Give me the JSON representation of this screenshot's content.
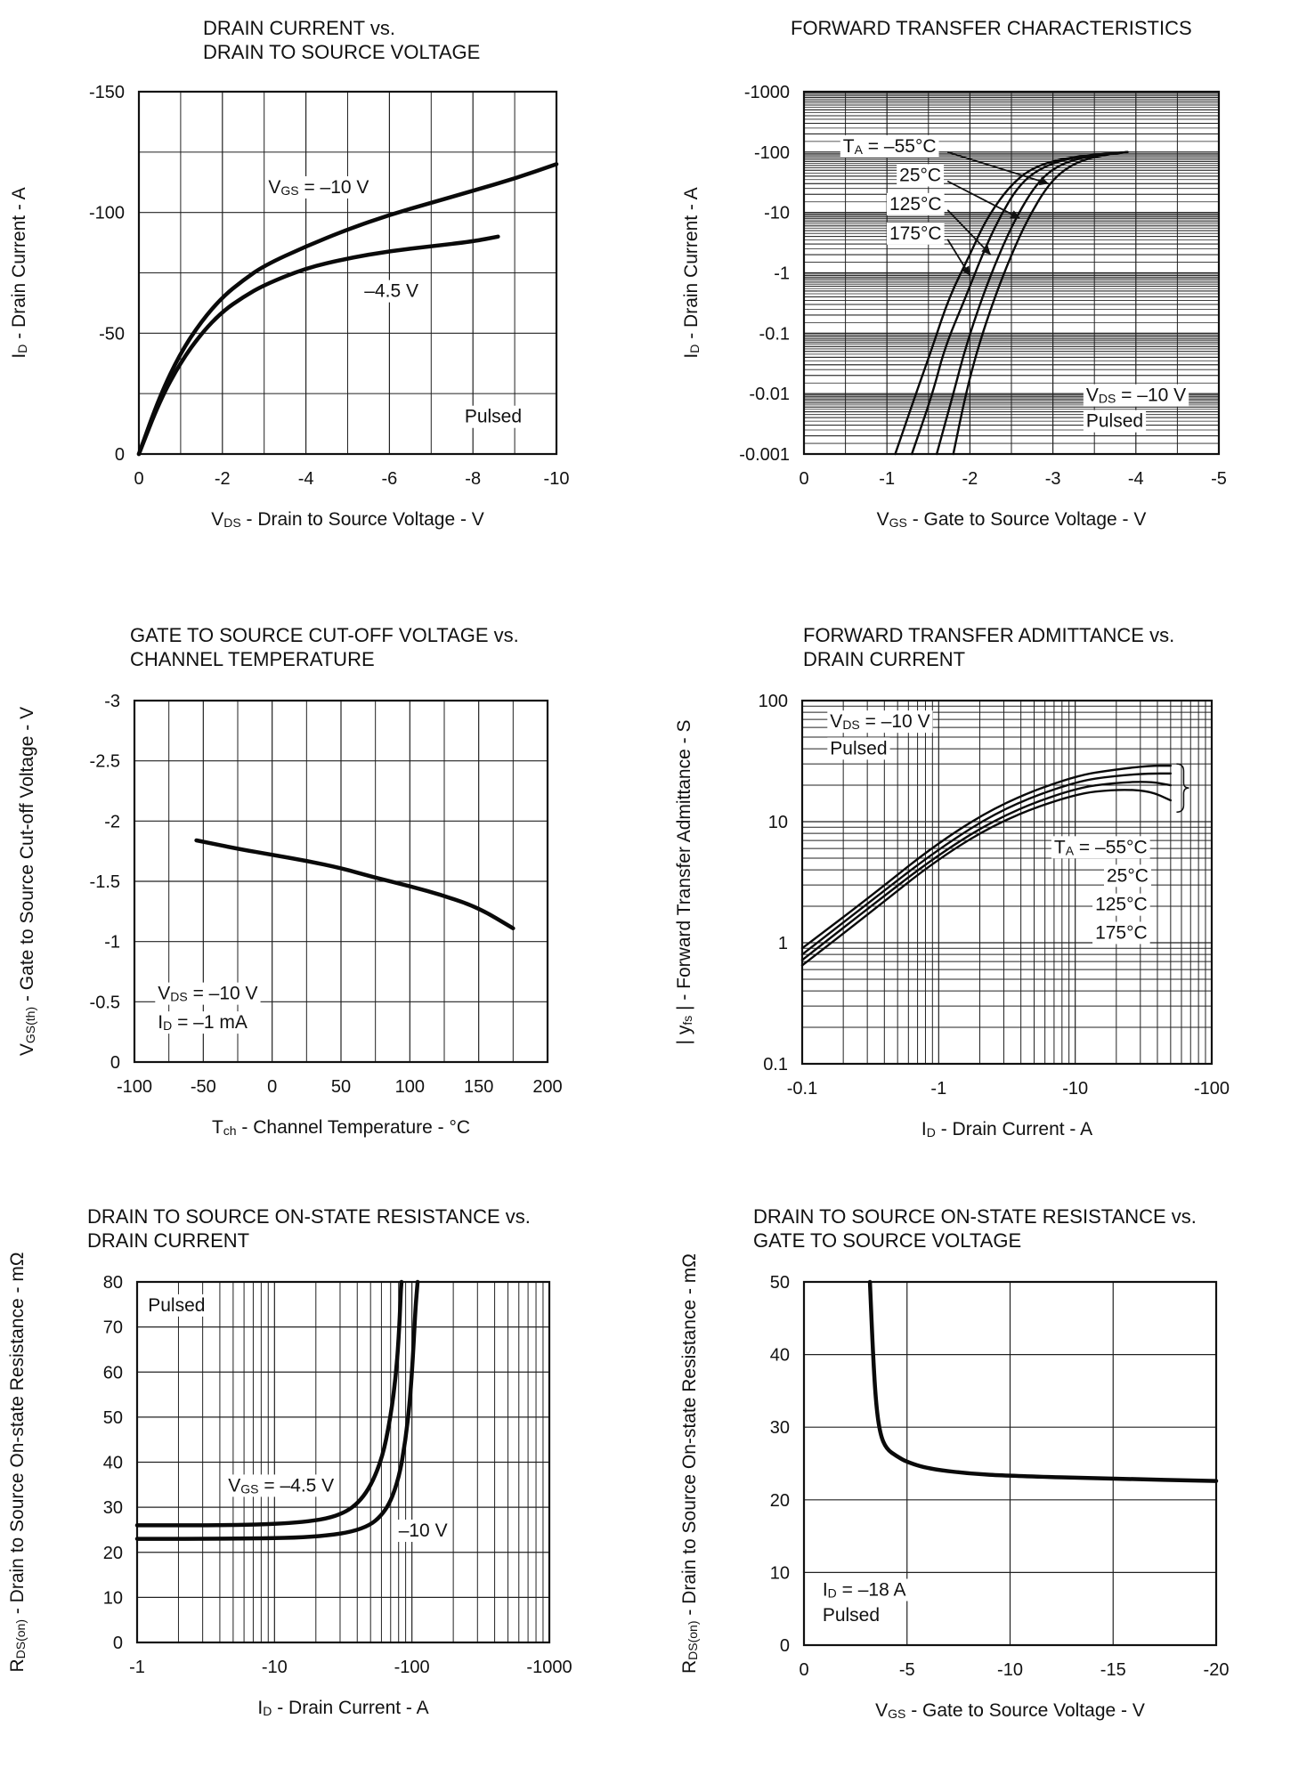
{
  "chart_data": [
    {
      "type": "line",
      "title": "DRAIN CURRENT vs.\nDRAIN TO SOURCE VOLTAGE",
      "xlabel": {
        "main": "V",
        "sub": "DS",
        "rest": " - Drain to Source Voltage - V"
      },
      "ylabel": {
        "main": "I",
        "sub": "D",
        "rest": " - Drain Current - A"
      },
      "xscale": "linear",
      "yscale": "linear",
      "xlim": [
        0,
        -10
      ],
      "ylim": [
        0,
        -150
      ],
      "xticks": [
        0,
        -2,
        -4,
        -6,
        -8,
        -10
      ],
      "xtick_labels": [
        "0",
        "-2",
        "-4",
        "-6",
        "-8",
        "-10"
      ],
      "yticks": [
        0,
        -50,
        -100,
        -150
      ],
      "ytick_labels": [
        "0",
        "-50",
        "-100",
        "-150"
      ],
      "minor_x": [
        -1,
        -3,
        -5,
        -7,
        -9
      ],
      "minor_y": [
        -25,
        -75,
        -125
      ],
      "series": [
        {
          "name": "VGS = -10 V",
          "x": [
            0,
            -0.5,
            -1,
            -1.5,
            -2,
            -2.5,
            -3,
            -4,
            -5,
            -6,
            -7,
            -8,
            -9,
            -10
          ],
          "y": [
            0,
            -24,
            -42,
            -55,
            -65,
            -72,
            -78,
            -86,
            -93,
            -99,
            -104,
            -109,
            -114,
            -120
          ]
        },
        {
          "name": "-4.5 V",
          "x": [
            0,
            -0.5,
            -1,
            -1.5,
            -2,
            -2.5,
            -3,
            -4,
            -5,
            -6,
            -7,
            -8,
            -8.6
          ],
          "y": [
            0,
            -22,
            -38,
            -50,
            -59,
            -65,
            -70,
            -77,
            -81,
            -84,
            -86,
            -88,
            -90
          ]
        }
      ],
      "annotations": [
        {
          "main": "V",
          "sub": "GS",
          "rest": " = –10 V",
          "x": -3.1,
          "y": -108
        },
        {
          "main": "–4.5 V",
          "sub": "",
          "rest": "",
          "x": -5.4,
          "y": -65
        },
        {
          "main": "Pulsed",
          "sub": "",
          "rest": "",
          "x": -7.8,
          "y": -13
        }
      ]
    },
    {
      "type": "line",
      "title": "FORWARD TRANSFER CHARACTERISTICS",
      "xlabel": {
        "main": "V",
        "sub": "GS",
        "rest": " - Gate to Source Voltage - V"
      },
      "ylabel": {
        "main": "I",
        "sub": "D",
        "rest": " - Drain Current - A"
      },
      "xscale": "linear",
      "yscale": "log",
      "xlim": [
        0,
        -5
      ],
      "ylim": [
        -0.001,
        -1000
      ],
      "xticks": [
        0,
        -1,
        -2,
        -3,
        -4,
        -5
      ],
      "xtick_labels": [
        "0",
        "-1",
        "-2",
        "-3",
        "-4",
        "-5"
      ],
      "yticks": [
        -0.001,
        -0.01,
        -0.1,
        -1,
        -10,
        -100,
        -1000
      ],
      "ytick_labels": [
        "-0.001",
        "-0.01",
        "-0.1",
        "-1",
        "-10",
        "-100",
        "-1000"
      ],
      "minor_x": [
        -0.5,
        -1.5,
        -2.5,
        -3.5,
        -4.5
      ],
      "series": [
        {
          "name": "TA = -55°C",
          "x": [
            -1.8,
            -1.95,
            -2.1,
            -2.3,
            -2.5,
            -2.7,
            -2.95,
            -3.2,
            -3.5,
            -3.9
          ],
          "y": [
            -0.001,
            -0.01,
            -0.06,
            -0.4,
            -2,
            -8,
            -30,
            -60,
            -85,
            -100
          ]
        },
        {
          "name": "25°C",
          "x": [
            -1.6,
            -1.8,
            -1.95,
            -2.15,
            -2.35,
            -2.55,
            -2.8,
            -3.05,
            -3.4,
            -3.9
          ],
          "y": [
            -0.001,
            -0.01,
            -0.06,
            -0.4,
            -2,
            -8,
            -30,
            -60,
            -85,
            -100
          ]
        },
        {
          "name": "125°C",
          "x": [
            -1.3,
            -1.55,
            -1.7,
            -1.95,
            -2.15,
            -2.35,
            -2.6,
            -2.9,
            -3.3,
            -3.9
          ],
          "y": [
            -0.001,
            -0.01,
            -0.06,
            -0.4,
            -2,
            -8,
            -30,
            -60,
            -85,
            -100
          ]
        },
        {
          "name": "175°C",
          "x": [
            -1.1,
            -1.35,
            -1.55,
            -1.75,
            -2.0,
            -2.2,
            -2.5,
            -2.8,
            -3.25,
            -3.9
          ],
          "y": [
            -0.001,
            -0.01,
            -0.06,
            -0.4,
            -2,
            -8,
            -30,
            -60,
            -85,
            -100
          ]
        }
      ],
      "annotations": [
        {
          "main": "T",
          "sub": "A",
          "rest": " = –55°C",
          "x": -0.47,
          "y": -100
        },
        {
          "main": "25°C",
          "sub": "",
          "rest": "",
          "x": -1.15,
          "y": -33
        },
        {
          "main": "125°C",
          "sub": "",
          "rest": "",
          "x": -1.03,
          "y": -11
        },
        {
          "main": "175°C",
          "sub": "",
          "rest": "",
          "x": -1.03,
          "y": -3.6
        },
        {
          "main": "V",
          "sub": "DS",
          "rest": " = –10 V",
          "x": -3.4,
          "y": -0.0075
        },
        {
          "main": "Pulsed",
          "sub": "",
          "rest": "",
          "x": -3.4,
          "y": -0.0028
        }
      ]
    },
    {
      "type": "line",
      "title": "GATE TO SOURCE CUT-OFF VOLTAGE vs.\nCHANNEL TEMPERATURE",
      "xlabel": {
        "main": "T",
        "sub": "ch",
        "rest": " - Channel Temperature - °C"
      },
      "ylabel": {
        "main": "V",
        "sub": "GS(th)",
        "rest": " - Gate to Source Cut-off Voltage - V"
      },
      "xscale": "linear",
      "yscale": "linear",
      "xlim": [
        -100,
        200
      ],
      "ylim": [
        0,
        -3
      ],
      "xticks": [
        -100,
        -50,
        0,
        50,
        100,
        150,
        200
      ],
      "xtick_labels": [
        "-100",
        "-50",
        "0",
        "50",
        "100",
        "150",
        "200"
      ],
      "yticks": [
        0,
        -0.5,
        -1,
        -1.5,
        -2,
        -2.5,
        -3
      ],
      "ytick_labels": [
        "0",
        "-0.5",
        "-1",
        "-1.5",
        "-2",
        "-2.5",
        "-3"
      ],
      "minor_x": [
        -75,
        -25,
        25,
        75,
        125,
        175
      ],
      "series": [
        {
          "name": "VGS(th)",
          "x": [
            -55,
            -25,
            0,
            25,
            50,
            75,
            100,
            125,
            150,
            175
          ],
          "y": [
            -1.84,
            -1.77,
            -1.72,
            -1.67,
            -1.61,
            -1.53,
            -1.46,
            -1.38,
            -1.28,
            -1.11
          ]
        }
      ],
      "annotations": [
        {
          "main": "V",
          "sub": "DS",
          "rest": " = –10 V",
          "x": -83,
          "y": -0.52
        },
        {
          "main": "I",
          "sub": "D",
          "rest": " = –1 mA",
          "x": -83,
          "y": -0.28
        }
      ]
    },
    {
      "type": "line",
      "title": "FORWARD TRANSFER ADMITTANCE vs.\nDRAIN CURRENT",
      "xlabel": {
        "main": "I",
        "sub": "D",
        "rest": " - Drain Current - A"
      },
      "ylabel": {
        "main": "| y",
        "sub": "fs",
        "rest": " | - Forward Transfer Admittance - S"
      },
      "xscale": "log",
      "yscale": "log",
      "xlim": [
        -0.1,
        -100
      ],
      "ylim": [
        0.1,
        100
      ],
      "xticks": [
        -0.1,
        -1,
        -10,
        -100
      ],
      "xtick_labels": [
        "-0.1",
        "-1",
        "-10",
        "-100"
      ],
      "yticks": [
        0.1,
        1,
        10,
        100
      ],
      "ytick_labels": [
        "0.1",
        "1",
        "10",
        "100"
      ],
      "series": [
        {
          "name": "TA = -55°C",
          "x": [
            -0.1,
            -0.3,
            -1,
            -3,
            -10,
            -20,
            -35,
            -50
          ],
          "y": [
            0.65,
            1.7,
            5,
            10.5,
            17,
            18.5,
            18,
            15
          ]
        },
        {
          "name": "25°C",
          "x": [
            -0.1,
            -0.3,
            -1,
            -3,
            -10,
            -20,
            -35,
            -50
          ],
          "y": [
            0.72,
            1.9,
            5.4,
            11.5,
            19,
            21,
            21.5,
            20
          ]
        },
        {
          "name": "125°C",
          "x": [
            -0.1,
            -0.3,
            -1,
            -3,
            -10,
            -20,
            -35,
            -50
          ],
          "y": [
            0.8,
            2.1,
            6,
            13,
            21.5,
            24,
            25,
            25
          ]
        },
        {
          "name": "175°C",
          "x": [
            -0.1,
            -0.3,
            -1,
            -3,
            -10,
            -20,
            -35,
            -50
          ],
          "y": [
            0.9,
            2.3,
            6.8,
            14.5,
            24,
            27,
            29,
            29
          ]
        }
      ],
      "annotations": [
        {
          "main": "V",
          "sub": "DS",
          "rest": " = –10 V",
          "x": -0.16,
          "y": 60
        },
        {
          "main": "Pulsed",
          "sub": "",
          "rest": "",
          "x": -0.16,
          "y": 36
        },
        {
          "main": "T",
          "sub": "A",
          "rest": " = –55°C",
          "x": -7,
          "y": 5.5
        },
        {
          "main": "25°C",
          "sub": "",
          "rest": "",
          "x": -17,
          "y": 3.2
        },
        {
          "main": "125°C",
          "sub": "",
          "rest": "",
          "x": -14,
          "y": 1.85
        },
        {
          "main": "175°C",
          "sub": "",
          "rest": "",
          "x": -14,
          "y": 1.08
        }
      ]
    },
    {
      "type": "line",
      "title": "DRAIN  TO  SOURCE  ON-STATE  RESISTANCE  vs.\nDRAIN CURRENT",
      "xlabel": {
        "main": "I",
        "sub": "D",
        "rest": " - Drain Current - A"
      },
      "ylabel": {
        "main": "R",
        "sub": "DS(on)",
        "rest": " - Drain to Source On-state Resistance - mΩ"
      },
      "xscale": "log",
      "yscale": "linear",
      "xlim": [
        -1,
        -1000
      ],
      "ylim": [
        0,
        80
      ],
      "xticks": [
        -1,
        -10,
        -100,
        -1000
      ],
      "xtick_labels": [
        "-1",
        "-10",
        "-100",
        "-1000"
      ],
      "yticks": [
        0,
        10,
        20,
        30,
        40,
        50,
        60,
        70,
        80
      ],
      "ytick_labels": [
        "0",
        "10",
        "20",
        "30",
        "40",
        "50",
        "60",
        "70",
        "80"
      ],
      "series": [
        {
          "name": "VGS = -4.5 V",
          "x": [
            -1,
            -5,
            -15,
            -30,
            -45,
            -60,
            -70,
            -77,
            -81,
            -83,
            -84
          ],
          "y": [
            26,
            26,
            26.5,
            28,
            32,
            40,
            50,
            60,
            70,
            78,
            80
          ]
        },
        {
          "name": "-10 V",
          "x": [
            -1,
            -5,
            -20,
            -45,
            -65,
            -80,
            -90,
            -97,
            -102,
            -106,
            -110
          ],
          "y": [
            23,
            23,
            23.3,
            25,
            29,
            36,
            45,
            54,
            64,
            74,
            80
          ]
        }
      ],
      "annotations": [
        {
          "main": "Pulsed",
          "sub": "",
          "rest": "",
          "x": -1.2,
          "y": 73.5
        },
        {
          "main": "V",
          "sub": "GS",
          "rest": " = –4.5 V",
          "x": -4.6,
          "y": 33.5
        },
        {
          "main": "–10 V",
          "sub": "",
          "rest": "",
          "x": -80,
          "y": 23.5
        }
      ]
    },
    {
      "type": "line",
      "title": "DRAIN TO SOURCE ON-STATE RESISTANCE vs.\nGATE TO SOURCE VOLTAGE",
      "xlabel": {
        "main": "V",
        "sub": "GS",
        "rest": " - Gate to Source Voltage - V"
      },
      "ylabel": {
        "main": "R",
        "sub": "DS(on)",
        "rest": " - Drain to Source On-state Resistance - mΩ"
      },
      "xscale": "linear",
      "yscale": "linear",
      "xlim": [
        0,
        -20
      ],
      "ylim": [
        0,
        50
      ],
      "xticks": [
        0,
        -5,
        -10,
        -15,
        -20
      ],
      "xtick_labels": [
        "0",
        "-5",
        "-10",
        "-15",
        "-20"
      ],
      "yticks": [
        0,
        10,
        20,
        30,
        40,
        50
      ],
      "ytick_labels": [
        "0",
        "10",
        "20",
        "30",
        "40",
        "50"
      ],
      "series": [
        {
          "name": "RDS(on)",
          "x": [
            -3.2,
            -3.35,
            -3.5,
            -3.7,
            -4,
            -4.5,
            -5,
            -6,
            -8,
            -10,
            -15,
            -20
          ],
          "y": [
            50,
            40,
            33,
            29,
            27,
            26,
            25.2,
            24.3,
            23.6,
            23.3,
            22.9,
            22.6
          ]
        }
      ],
      "annotations": [
        {
          "main": "I",
          "sub": "D",
          "rest": " = –18 A",
          "x": -0.9,
          "y": 6.8
        },
        {
          "main": "Pulsed",
          "sub": "",
          "rest": "",
          "x": -0.9,
          "y": 3.3
        }
      ]
    }
  ]
}
